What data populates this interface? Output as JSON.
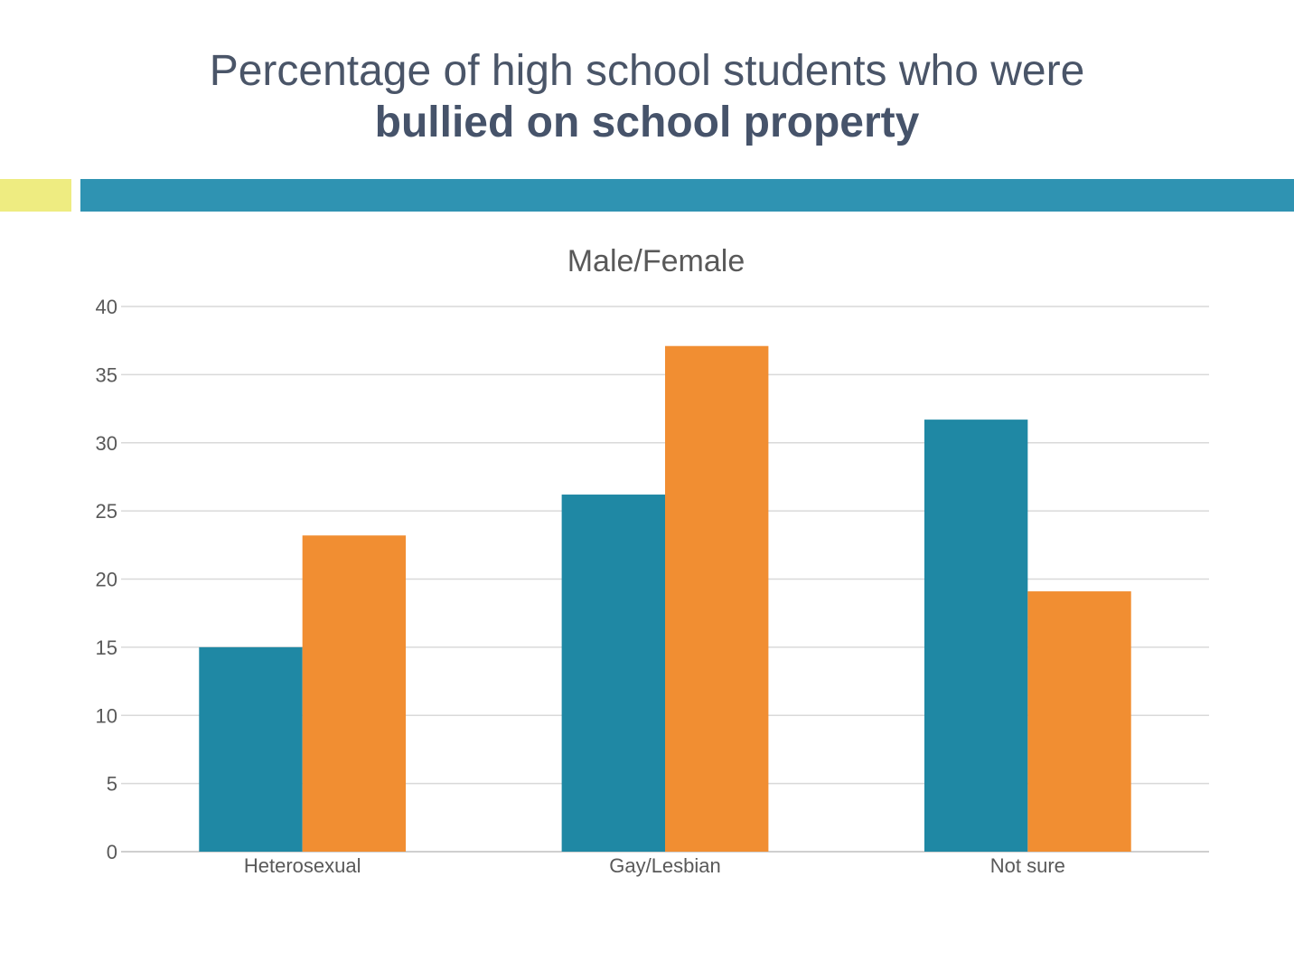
{
  "slide": {
    "title_line1": "Percentage of high school students who were",
    "title_line2": "bullied on school property"
  },
  "colors": {
    "accent_yellow": "#eeec81",
    "accent_teal": "#2f93b2",
    "male": "#1f88a4",
    "female": "#f18e32",
    "grid": "#d9d9d9",
    "text": "#595959"
  },
  "chart_data": {
    "type": "bar",
    "title": "Male/Female",
    "categories": [
      "Heterosexual",
      "Gay/Lesbian",
      "Not sure"
    ],
    "series": [
      {
        "values": [
          15.0,
          26.2,
          31.7
        ],
        "color": "#1f88a4"
      },
      {
        "values": [
          23.2,
          37.1,
          19.1
        ],
        "color": "#f18e32"
      }
    ],
    "xlabel": "",
    "ylabel": "",
    "ylim": [
      0,
      40
    ],
    "yticks": [
      0,
      5,
      10,
      15,
      20,
      25,
      30,
      35,
      40
    ],
    "grid": true,
    "legend": "none"
  }
}
